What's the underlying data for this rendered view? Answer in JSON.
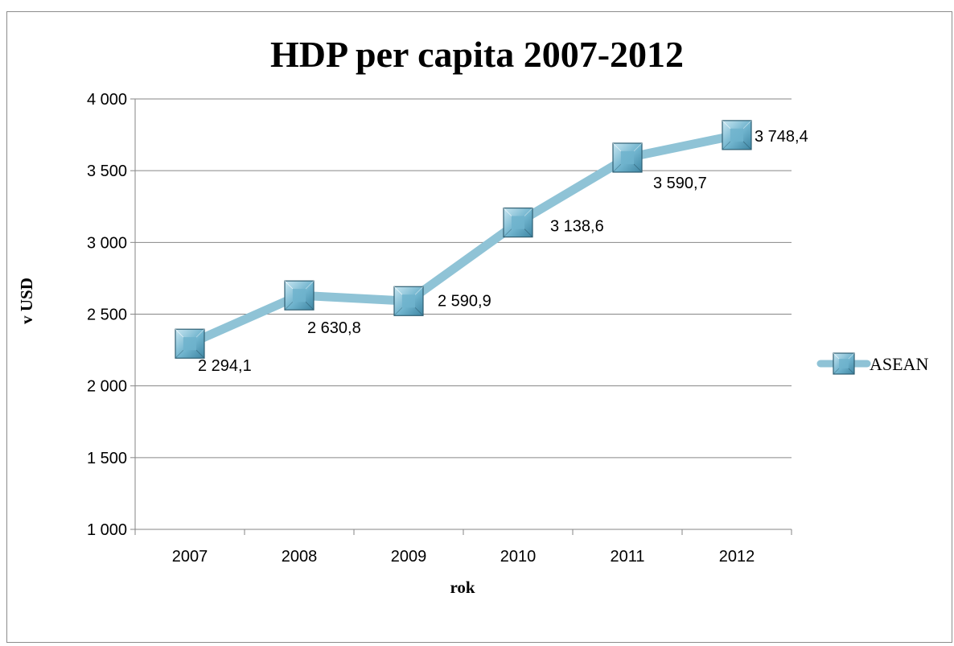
{
  "chart_data": {
    "type": "line",
    "title": "HDP per capita 2007-2012",
    "xlabel": "rok",
    "ylabel": "v USD",
    "categories": [
      "2007",
      "2008",
      "2009",
      "2010",
      "2011",
      "2012"
    ],
    "ylim": [
      1000,
      4000
    ],
    "yticks": [
      1000,
      1500,
      2000,
      2500,
      3000,
      3500,
      4000
    ],
    "ytick_labels": [
      "1 000",
      "1 500",
      "2 000",
      "2 500",
      "3 000",
      "3 500",
      "4 000"
    ],
    "grid": true,
    "legend": "right",
    "series": [
      {
        "name": "ASEAN",
        "values": [
          2294.1,
          2630.8,
          2590.9,
          3138.6,
          3590.7,
          3748.4
        ],
        "labels": [
          "2 294,1",
          "2 630,8",
          "2 590,9",
          "3 138,6",
          "3 590,7",
          "3 748,4"
        ],
        "color": "#8fc3d6",
        "marker_color": "#6fb3cd"
      }
    ]
  }
}
